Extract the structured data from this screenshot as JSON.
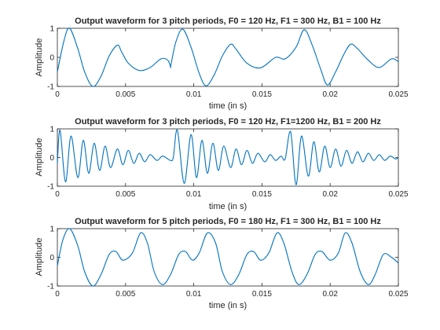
{
  "chart_data": [
    {
      "type": "line",
      "title": "Output waveform for 3 pitch periods, F0 = 120 Hz, F1 = 300 Hz, B1 = 100 Hz",
      "xlabel": "time (in s)",
      "ylabel": "Amplitude",
      "xlim": [
        0,
        0.025
      ],
      "ylim": [
        -1,
        1
      ],
      "xticks": [
        "0",
        "0.005",
        "0.01",
        "0.015",
        "0.02",
        "0.025"
      ],
      "yticks": [
        "-1",
        "0",
        "1"
      ],
      "series": [
        {
          "color": "#0072BD",
          "x": [
            0.0,
            0.0005,
            0.0009,
            0.0015,
            0.002,
            0.0026,
            0.0032,
            0.0038,
            0.0044,
            0.0047,
            0.0052,
            0.006,
            0.0068,
            0.0076,
            0.0081,
            0.0083,
            0.00833,
            0.0087,
            0.0092,
            0.0098,
            0.0104,
            0.0109,
            0.0115,
            0.0121,
            0.0127,
            0.0131,
            0.0139,
            0.0149,
            0.016,
            0.0167,
            0.0175,
            0.0181,
            0.0187,
            0.0193,
            0.0198,
            0.0204,
            0.021,
            0.0215,
            0.022,
            0.0228,
            0.0236,
            0.0245,
            0.025
          ],
          "y": [
            -0.5,
            0.6,
            1.0,
            0.3,
            -0.5,
            -1.0,
            -0.65,
            0.05,
            0.42,
            0.2,
            -0.2,
            -0.45,
            -0.35,
            -0.05,
            -0.1,
            -0.33,
            -0.25,
            0.55,
            0.97,
            0.35,
            -0.55,
            -0.98,
            -0.6,
            0.05,
            0.45,
            0.28,
            -0.2,
            -0.36,
            0.0,
            -0.05,
            0.35,
            0.95,
            0.4,
            -0.4,
            -0.95,
            -0.5,
            0.1,
            0.45,
            0.3,
            -0.1,
            -0.35,
            -0.05,
            -0.15
          ]
        }
      ]
    },
    {
      "type": "line",
      "title": "Output waveform for 3 pitch periods, F0 = 120 Hz, F1=1200 Hz, B1 = 200 Hz",
      "xlabel": "time (in s)",
      "ylabel": "Amplitude",
      "xlim": [
        0,
        0.025
      ],
      "ylim": [
        -1,
        1
      ],
      "xticks": [
        "0",
        "0.005",
        "0.01",
        "0.015",
        "0.02",
        "0.025"
      ],
      "yticks": [
        "-1",
        "0",
        "1"
      ],
      "series": [
        {
          "color": "#0072BD",
          "x": [
            0.0,
            0.0002,
            0.0006,
            0.001,
            0.0015,
            0.0019,
            0.0023,
            0.0027,
            0.0031,
            0.0035,
            0.0039,
            0.0044,
            0.0048,
            0.0052,
            0.0056,
            0.006,
            0.0064,
            0.0068,
            0.0073,
            0.0077,
            0.0081,
            0.0083,
            0.0085,
            0.0088,
            0.0093,
            0.0098,
            0.0102,
            0.0106,
            0.011,
            0.0114,
            0.0118,
            0.0122,
            0.0127,
            0.0131,
            0.0135,
            0.0139,
            0.0143,
            0.0147,
            0.0152,
            0.0156,
            0.016,
            0.0164,
            0.0167,
            0.0171,
            0.0175,
            0.0179,
            0.0184,
            0.0188,
            0.0192,
            0.0196,
            0.02,
            0.0204,
            0.0208,
            0.0212,
            0.0216,
            0.022,
            0.0224,
            0.0228,
            0.0232,
            0.0236,
            0.024,
            0.0244,
            0.0248,
            0.025
          ],
          "y": [
            -0.2,
            0.95,
            -0.85,
            0.75,
            -0.7,
            0.6,
            -0.55,
            0.5,
            -0.45,
            0.4,
            -0.35,
            0.3,
            -0.25,
            0.25,
            -0.2,
            0.15,
            -0.15,
            0.1,
            -0.1,
            0.05,
            -0.05,
            -0.1,
            0.0,
            0.95,
            -0.9,
            0.8,
            -0.7,
            0.6,
            -0.55,
            0.5,
            -0.45,
            0.4,
            -0.35,
            0.3,
            -0.25,
            0.25,
            -0.2,
            0.15,
            -0.15,
            0.1,
            -0.1,
            0.05,
            -0.05,
            0.9,
            -0.95,
            0.75,
            -0.65,
            0.55,
            -0.5,
            0.4,
            -0.35,
            0.3,
            -0.3,
            0.25,
            -0.2,
            0.2,
            -0.15,
            0.15,
            -0.1,
            0.1,
            -0.1,
            0.05,
            -0.05,
            0.0
          ]
        }
      ]
    },
    {
      "type": "line",
      "title": "Output waveform for 5 pitch periods, F0 = 180 Hz, F1 = 300 Hz, B1 = 100 Hz",
      "xlabel": "time (in s)",
      "ylabel": "Amplitude",
      "xlim": [
        0,
        0.025
      ],
      "ylim": [
        -1,
        1
      ],
      "xticks": [
        "0",
        "0.005",
        "0.01",
        "0.015",
        "0.02",
        "0.025"
      ],
      "yticks": [
        "-1",
        "0",
        "1"
      ],
      "series": [
        {
          "color": "#0072BD",
          "x": [
            0.0,
            0.0004,
            0.0009,
            0.0015,
            0.002,
            0.0026,
            0.0032,
            0.0038,
            0.0043,
            0.0048,
            0.0055,
            0.0061,
            0.0066,
            0.0071,
            0.0077,
            0.0083,
            0.0089,
            0.0094,
            0.0099,
            0.0104,
            0.011,
            0.0116,
            0.0121,
            0.0127,
            0.0133,
            0.0139,
            0.0144,
            0.0149,
            0.0155,
            0.0161,
            0.0166,
            0.0172,
            0.0177,
            0.0183,
            0.0189,
            0.0194,
            0.02,
            0.0206,
            0.0211,
            0.0216,
            0.0222,
            0.0228,
            0.0233,
            0.0239,
            0.0245,
            0.025
          ],
          "y": [
            -0.3,
            0.6,
            1.0,
            0.4,
            -0.5,
            -1.0,
            -0.6,
            0.1,
            0.2,
            -0.1,
            0.15,
            0.85,
            0.5,
            -0.5,
            -0.95,
            -0.6,
            0.1,
            0.2,
            -0.1,
            0.15,
            0.85,
            0.5,
            -0.5,
            -0.95,
            -0.6,
            0.1,
            0.2,
            -0.1,
            0.15,
            0.85,
            0.5,
            -0.5,
            -0.95,
            -0.6,
            0.1,
            0.2,
            -0.1,
            0.15,
            0.85,
            0.5,
            -0.5,
            -0.95,
            -0.6,
            0.1,
            0.0,
            -0.2
          ]
        }
      ]
    }
  ]
}
